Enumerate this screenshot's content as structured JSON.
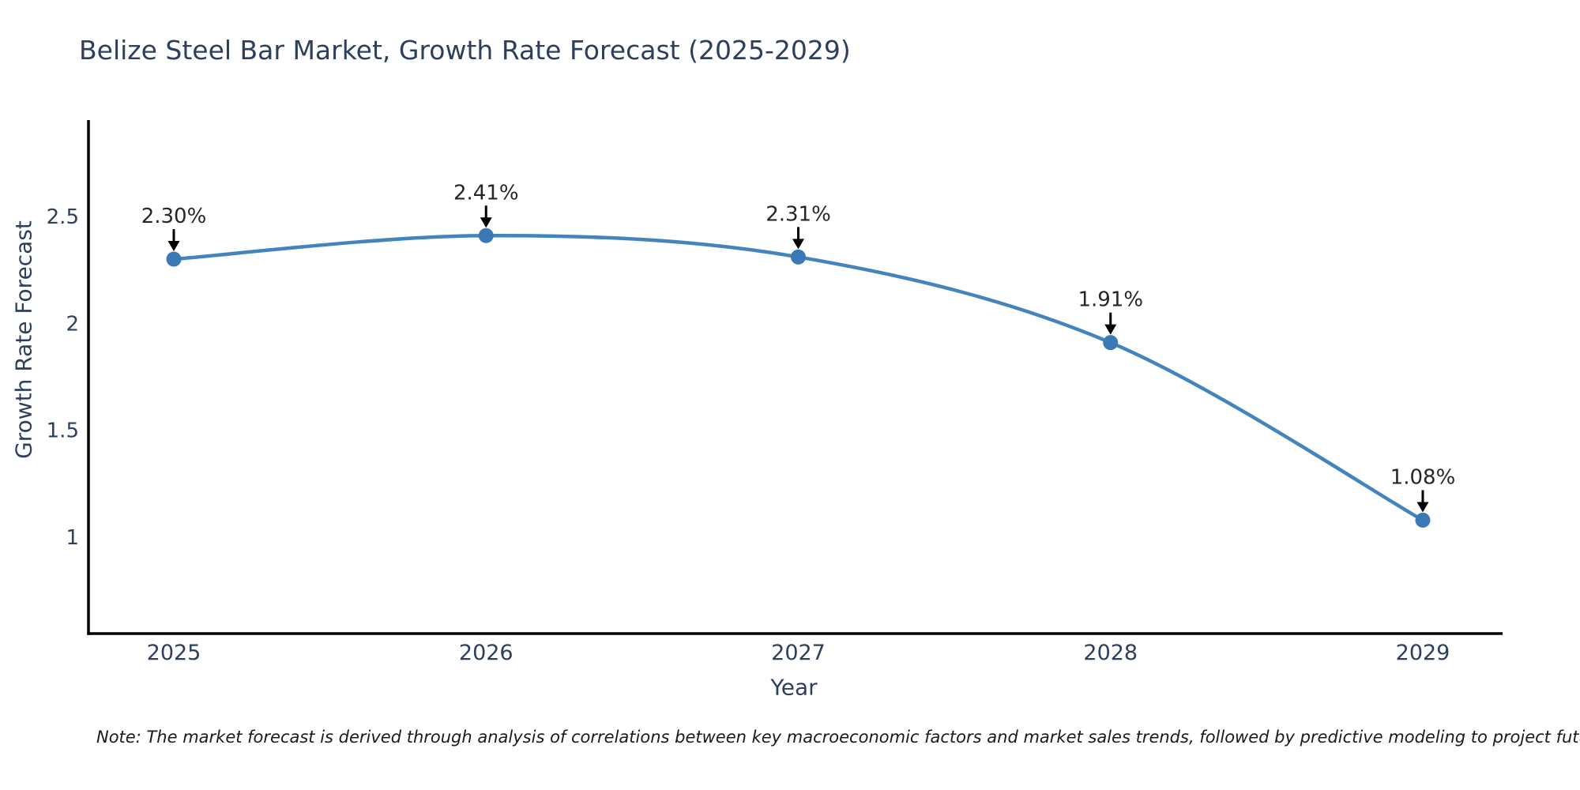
{
  "chart_data": {
    "type": "line",
    "title": "Belize Steel Bar Market, Growth Rate Forecast (2025-2029)",
    "xlabel": "Year",
    "ylabel": "Growth Rate Forecast",
    "categories": [
      "2025",
      "2026",
      "2027",
      "2028",
      "2029"
    ],
    "series": [
      {
        "name": "Growth Rate Forecast",
        "values": [
          2.3,
          2.41,
          2.31,
          1.91,
          1.08
        ],
        "point_labels": [
          "2.30%",
          "2.41%",
          "2.31%",
          "1.91%",
          "1.08%"
        ]
      }
    ],
    "yticks": [
      1,
      1.5,
      2,
      2.5
    ],
    "ylim": [
      0.55,
      2.95
    ],
    "grid": false,
    "legend_position": "none",
    "line_shape": "spline",
    "colors": {
      "line": "#4484bd",
      "marker": "#3a79b5",
      "axis": "#000000",
      "arrow": "#000000",
      "tick_text": "#2e3f5c",
      "label_text": "#262626"
    },
    "note": "Note: The market forecast is derived through analysis of correlations between key macroeconomic factors and market sales trends, followed by predictive modeling to project future sales"
  }
}
